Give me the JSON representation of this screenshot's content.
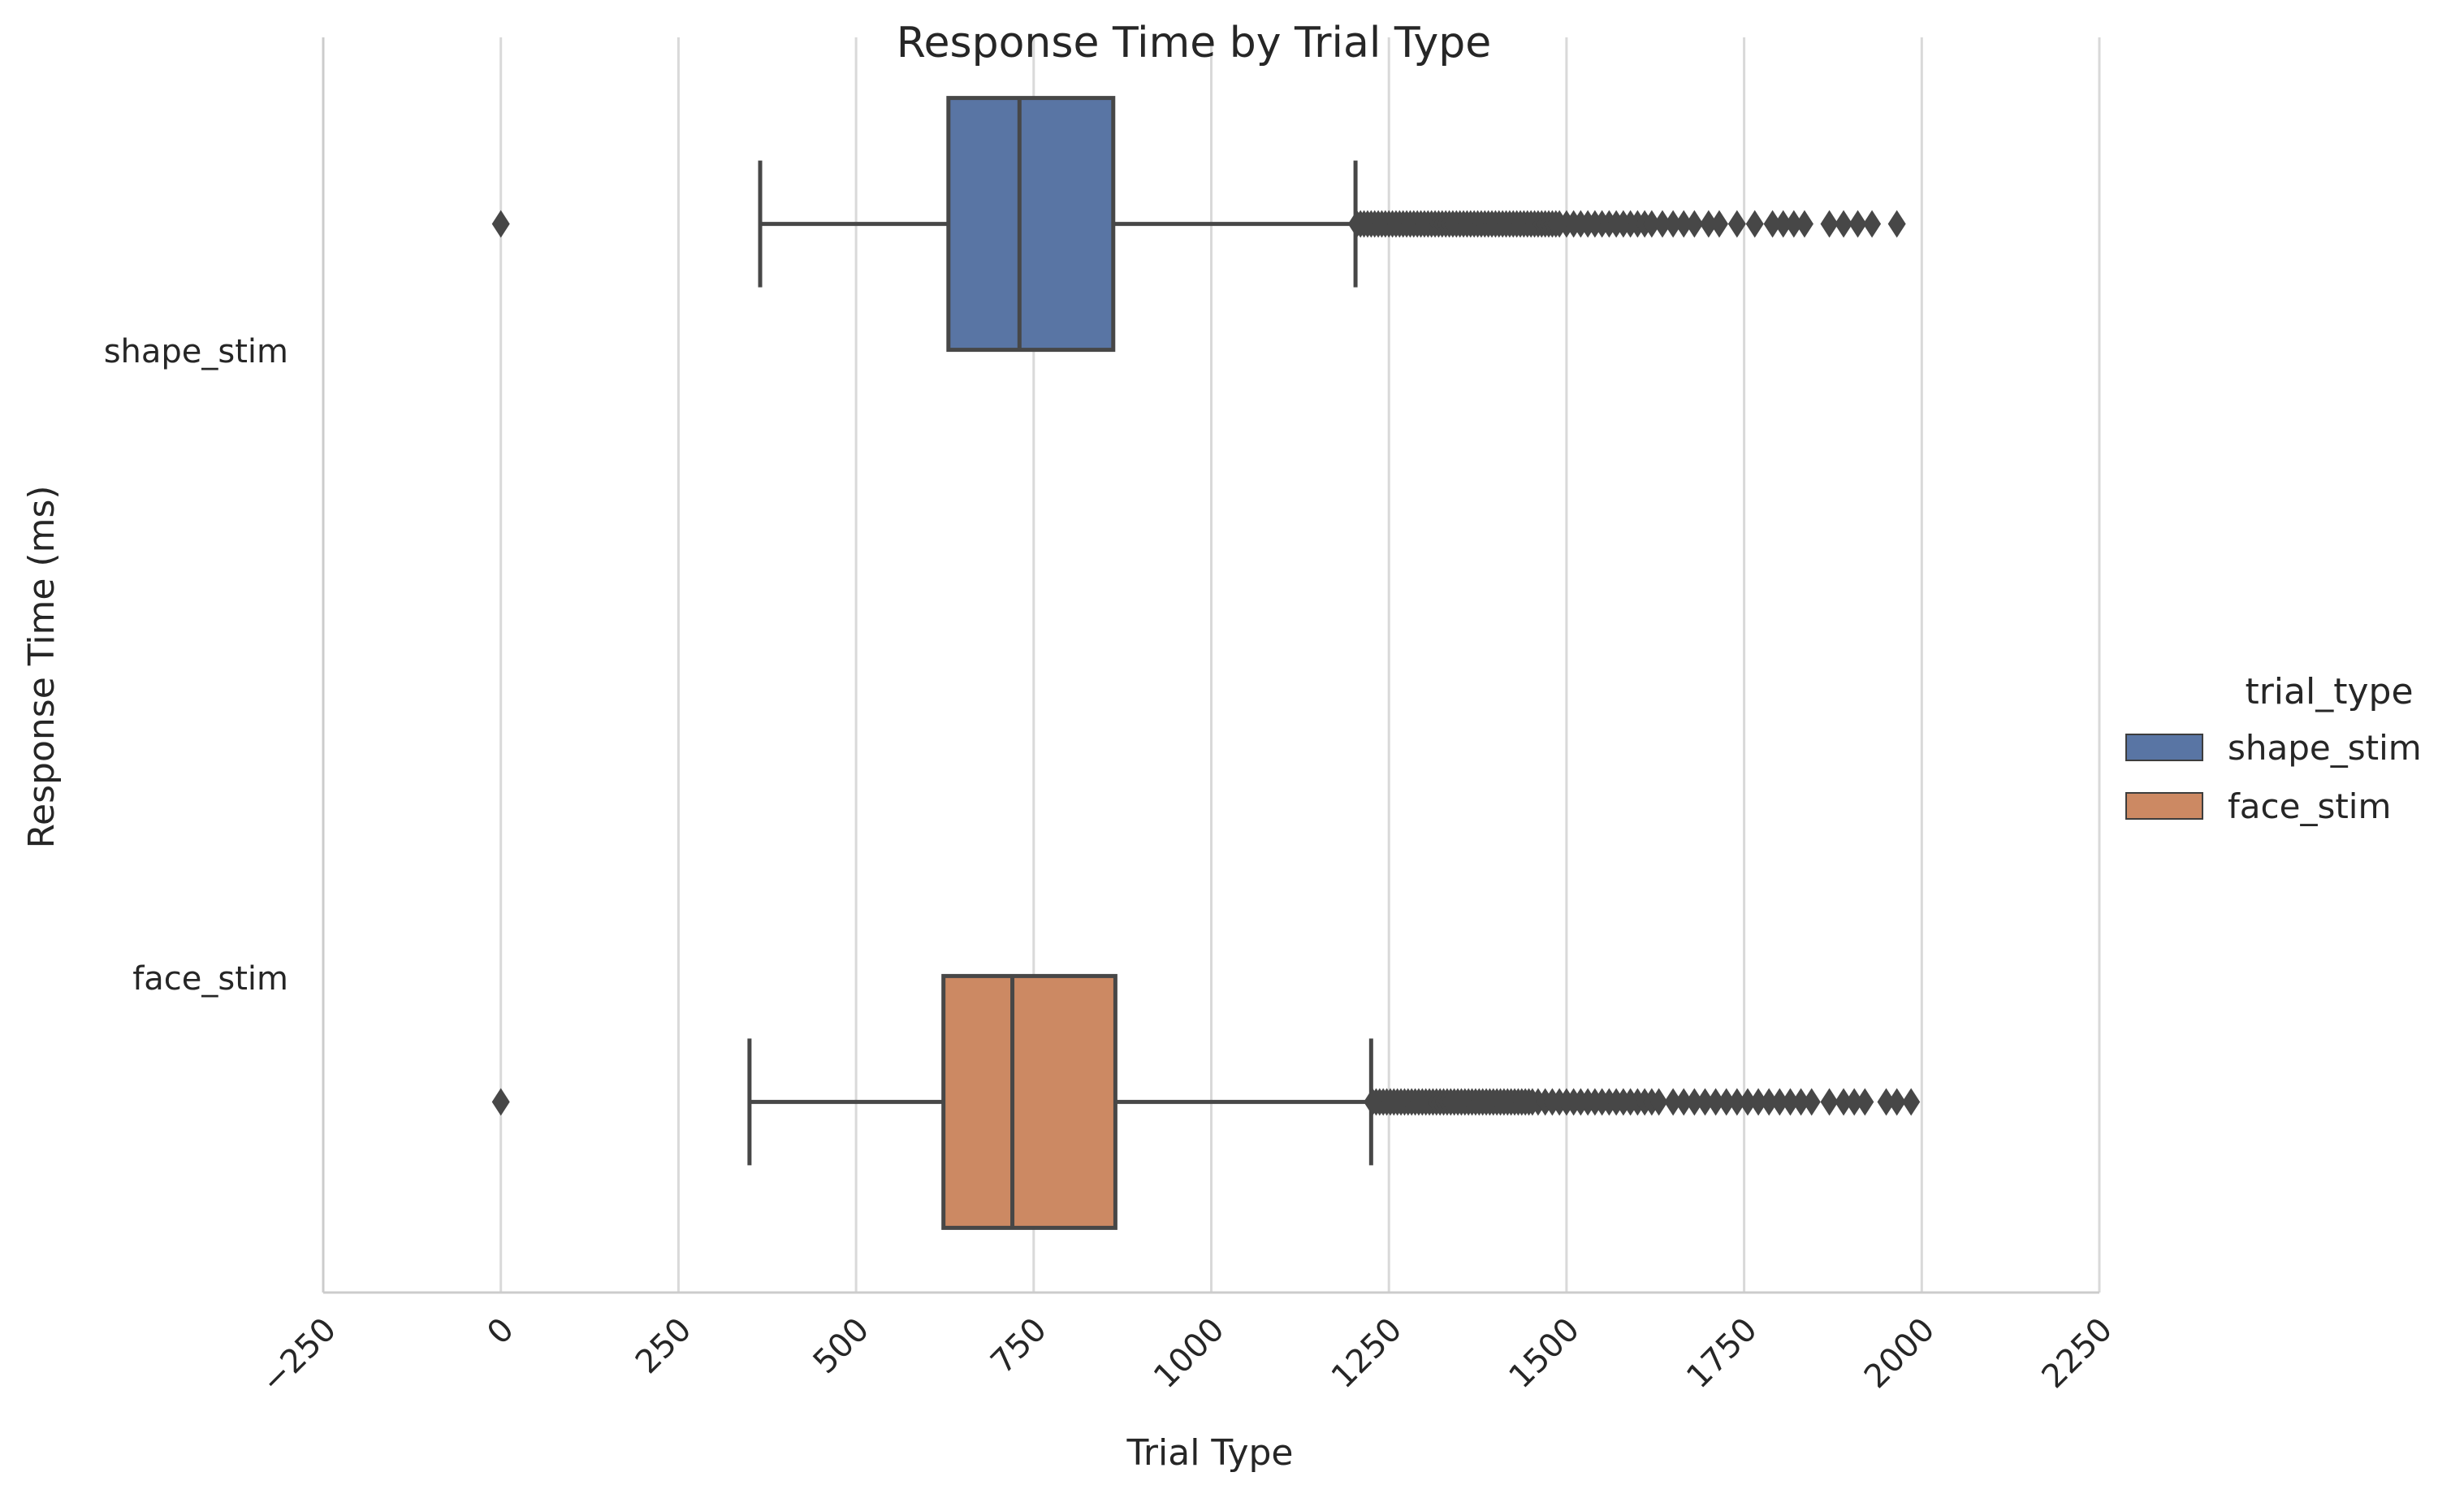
{
  "chart_data": {
    "type": "boxplot",
    "orientation": "horizontal",
    "title": "Response Time by Trial Type",
    "xlabel": "Trial Type",
    "ylabel": "Response Time (ms)",
    "xlim": [
      -250,
      2250
    ],
    "xticks": [
      -250,
      0,
      250,
      500,
      750,
      1000,
      1250,
      1500,
      1750,
      2000,
      2250
    ],
    "xtick_labels": [
      "−250",
      "0",
      "250",
      "500",
      "750",
      "1000",
      "1250",
      "1500",
      "1750",
      "2000",
      "2250"
    ],
    "grid": "vertical",
    "legend": {
      "title": "trial_type",
      "placement": "right",
      "entries": [
        "shape_stim",
        "face_stim"
      ]
    },
    "categories": [
      "shape_stim",
      "face_stim"
    ],
    "series": [
      {
        "name": "shape_stim",
        "color": "#5975a4",
        "hue_offset": -0.2,
        "whislo": 365,
        "q1": 630,
        "median": 730,
        "q3": 862,
        "whishi": 1203,
        "fliers": [
          0,
          1205,
          1210,
          1215,
          1220,
          1225,
          1230,
          1235,
          1240,
          1245,
          1250,
          1255,
          1260,
          1265,
          1270,
          1275,
          1280,
          1285,
          1290,
          1295,
          1300,
          1305,
          1310,
          1315,
          1320,
          1325,
          1330,
          1335,
          1340,
          1345,
          1350,
          1355,
          1360,
          1365,
          1370,
          1375,
          1380,
          1385,
          1390,
          1395,
          1400,
          1405,
          1410,
          1415,
          1420,
          1425,
          1430,
          1435,
          1440,
          1445,
          1450,
          1455,
          1460,
          1465,
          1470,
          1475,
          1480,
          1485,
          1490,
          1500,
          1510,
          1520,
          1530,
          1540,
          1550,
          1560,
          1570,
          1580,
          1590,
          1600,
          1610,
          1620,
          1635,
          1650,
          1665,
          1680,
          1700,
          1715,
          1740,
          1765,
          1790,
          1805,
          1820,
          1835,
          1870,
          1890,
          1910,
          1930,
          1965
        ]
      },
      {
        "name": "face_stim",
        "color": "#cc8963",
        "hue_offset": 0.2,
        "whislo": 350,
        "q1": 623,
        "median": 720,
        "q3": 865,
        "whishi": 1225,
        "fliers": [
          0,
          1227,
          1232,
          1237,
          1242,
          1247,
          1252,
          1257,
          1262,
          1267,
          1272,
          1277,
          1282,
          1287,
          1292,
          1297,
          1302,
          1307,
          1312,
          1317,
          1322,
          1327,
          1332,
          1337,
          1342,
          1347,
          1352,
          1357,
          1362,
          1367,
          1372,
          1377,
          1382,
          1387,
          1392,
          1397,
          1402,
          1407,
          1412,
          1417,
          1422,
          1427,
          1432,
          1437,
          1442,
          1447,
          1452,
          1460,
          1470,
          1480,
          1490,
          1500,
          1510,
          1520,
          1530,
          1540,
          1550,
          1560,
          1570,
          1580,
          1590,
          1600,
          1610,
          1620,
          1630,
          1650,
          1665,
          1680,
          1695,
          1710,
          1725,
          1740,
          1755,
          1770,
          1785,
          1800,
          1815,
          1830,
          1845,
          1870,
          1890,
          1905,
          1920,
          1950,
          1965,
          1985
        ]
      }
    ]
  }
}
